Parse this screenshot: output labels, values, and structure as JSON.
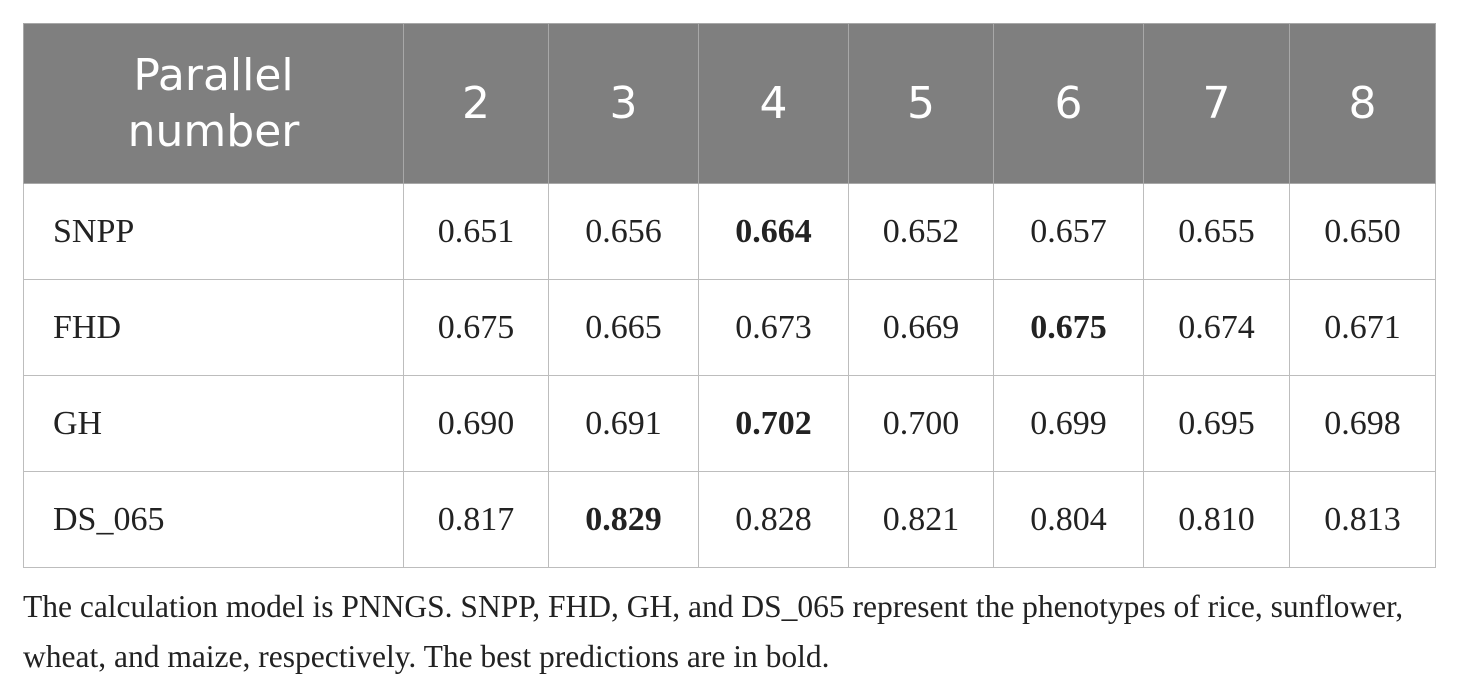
{
  "table": {
    "header": [
      "Parallel number",
      "2",
      "3",
      "4",
      "5",
      "6",
      "7",
      "8"
    ],
    "rows": [
      [
        "SNPP",
        "0.651",
        "0.656",
        "0.664",
        "0.652",
        "0.657",
        "0.655",
        "0.650"
      ],
      [
        "FHD",
        "0.675",
        "0.665",
        "0.673",
        "0.669",
        "0.675",
        "0.674",
        "0.671"
      ],
      [
        "GH",
        "0.690",
        "0.691",
        "0.702",
        "0.700",
        "0.699",
        "0.695",
        "0.698"
      ],
      [
        "DS_065",
        "0.817",
        "0.829",
        "0.828",
        "0.821",
        "0.804",
        "0.810",
        "0.813"
      ]
    ],
    "bold_cells": [
      [
        0,
        3
      ],
      [
        1,
        5
      ],
      [
        2,
        3
      ],
      [
        3,
        2
      ]
    ]
  },
  "caption": "The calculation model is PNNGS. SNPP, FHD, GH, and DS_065 represent the phenotypes of rice, sunflower, wheat, and maize, respectively. The best predictions are in bold."
}
